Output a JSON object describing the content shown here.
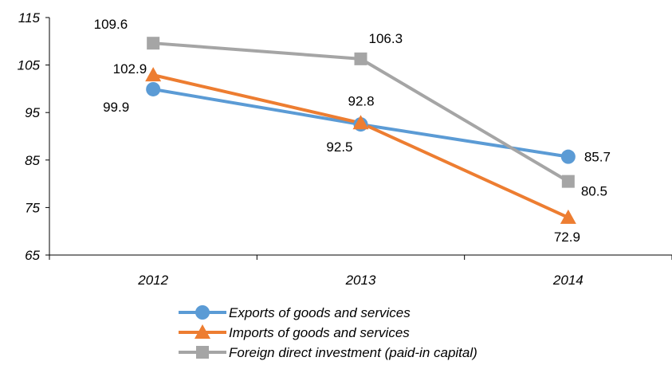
{
  "chart_data": {
    "type": "line",
    "title": "",
    "xlabel": "",
    "ylabel": "",
    "categories": [
      "2012",
      "2013",
      "2014"
    ],
    "ylim": [
      65,
      115
    ],
    "yticks": [
      65,
      75,
      85,
      95,
      105,
      115
    ],
    "grid": false,
    "legend_position": "bottom",
    "series": [
      {
        "name": "Exports of goods and services",
        "values": [
          99.9,
          92.5,
          85.7
        ],
        "color": "#5B9BD5",
        "marker": "circle"
      },
      {
        "name": "Imports of goods and services",
        "values": [
          102.9,
          92.8,
          72.9
        ],
        "color": "#ED7D31",
        "marker": "triangle"
      },
      {
        "name": "Foreign direct investment (paid-in capital)",
        "values": [
          109.6,
          106.3,
          80.5
        ],
        "color": "#A5A5A5",
        "marker": "square"
      }
    ]
  }
}
